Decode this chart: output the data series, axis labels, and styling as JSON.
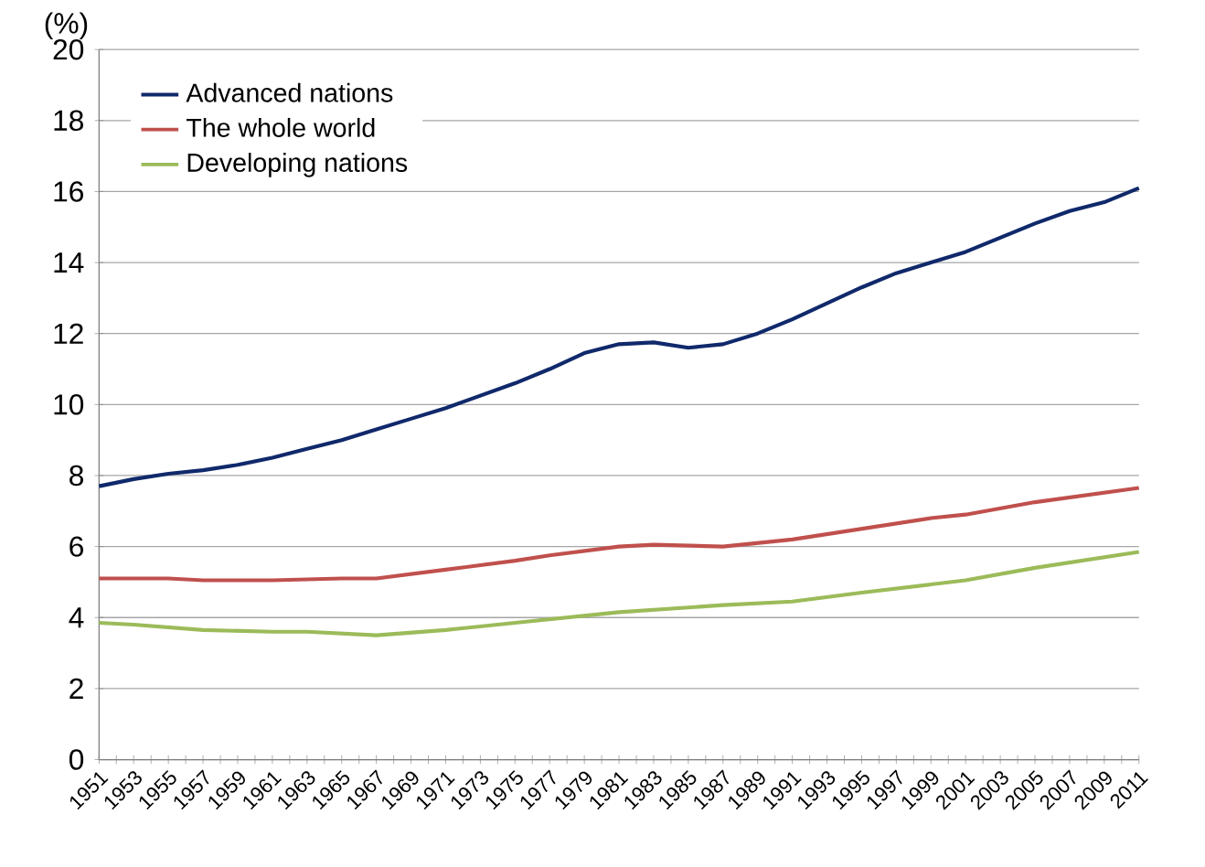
{
  "chart_data": {
    "type": "line",
    "ylabel": "(%)",
    "xlim": [
      1951,
      2011
    ],
    "xticks": [
      1951,
      1953,
      1955,
      1957,
      1959,
      1961,
      1963,
      1965,
      1967,
      1969,
      1971,
      1973,
      1975,
      1977,
      1979,
      1981,
      1983,
      1985,
      1987,
      1989,
      1991,
      1993,
      1995,
      1997,
      1999,
      2001,
      2003,
      2005,
      2007,
      2009,
      2011
    ],
    "ylim": [
      0,
      20
    ],
    "yticks": [
      0,
      2,
      4,
      6,
      8,
      10,
      12,
      14,
      16,
      18,
      20
    ],
    "grid": "y",
    "legend": "top left",
    "series": [
      {
        "name": "Advanced nations",
        "color": "#10296b",
        "x": [
          1951,
          1953,
          1955,
          1957,
          1959,
          1961,
          1963,
          1965,
          1967,
          1969,
          1971,
          1973,
          1975,
          1977,
          1979,
          1981,
          1983,
          1985,
          1987,
          1989,
          1991,
          1993,
          1995,
          1997,
          1999,
          2001,
          2003,
          2005,
          2007,
          2009,
          2011
        ],
        "values": [
          7.7,
          7.9,
          8.05,
          8.15,
          8.3,
          8.5,
          8.75,
          9.0,
          9.3,
          9.6,
          9.9,
          10.25,
          10.6,
          11.0,
          11.45,
          11.7,
          11.75,
          11.6,
          11.7,
          12.0,
          12.4,
          12.85,
          13.3,
          13.7,
          14.0,
          14.3,
          14.7,
          15.1,
          15.45,
          15.7,
          16.1
        ]
      },
      {
        "name": "The whole world",
        "color": "#c0504d",
        "x": [
          1951,
          1955,
          1957,
          1961,
          1965,
          1967,
          1971,
          1975,
          1977,
          1981,
          1983,
          1987,
          1991,
          1995,
          1999,
          2001,
          2005,
          2011
        ],
        "values": [
          5.1,
          5.1,
          5.05,
          5.05,
          5.1,
          5.1,
          5.35,
          5.6,
          5.75,
          6.0,
          6.05,
          6.0,
          6.2,
          6.5,
          6.8,
          6.9,
          7.25,
          7.65
        ]
      },
      {
        "name": "Developing nations",
        "color": "#9bbb59",
        "x": [
          1951,
          1953,
          1957,
          1961,
          1963,
          1967,
          1971,
          1975,
          1981,
          1987,
          1991,
          1995,
          2001,
          2005,
          2011
        ],
        "values": [
          3.85,
          3.8,
          3.65,
          3.6,
          3.6,
          3.5,
          3.65,
          3.85,
          4.15,
          4.35,
          4.45,
          4.7,
          5.05,
          5.4,
          5.85
        ]
      }
    ]
  }
}
